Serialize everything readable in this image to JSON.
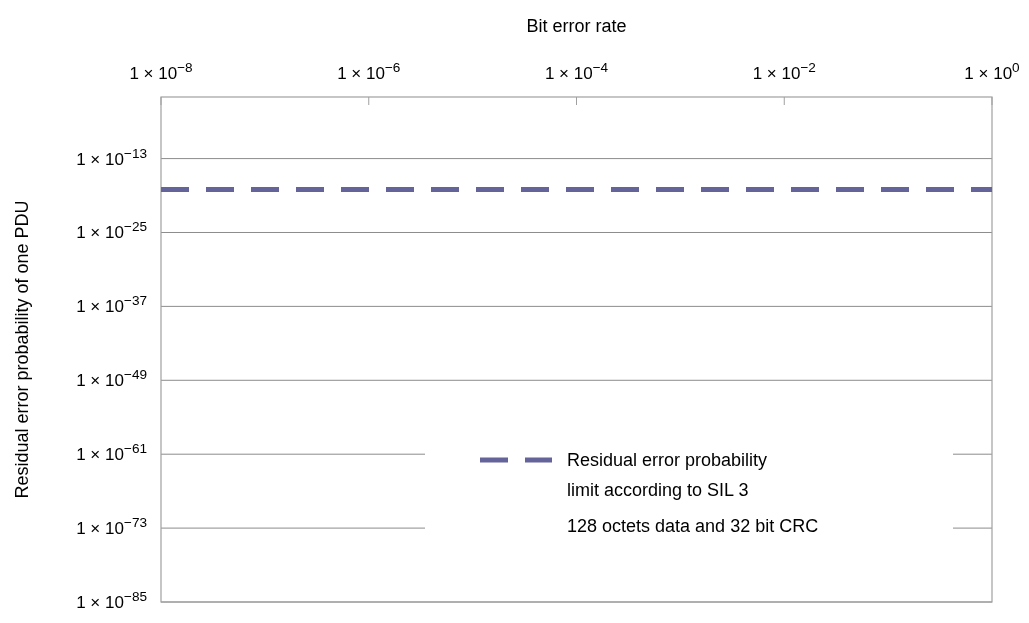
{
  "chart_data": {
    "type": "line",
    "xlabel": "Bit error rate",
    "ylabel": "Residual error probability of one PDU",
    "log": "xy",
    "xlim": [
      1e-08,
      1
    ],
    "ylim": [
      1e-85,
      0.001
    ],
    "xticks": [
      {
        "value": 1e-08,
        "label": "1 × 10$^{−8}$"
      },
      {
        "value": 1e-06,
        "label": "1 × 10$^{−6}$"
      },
      {
        "value": 0.0001,
        "label": "1 × 10$^{−4}$"
      },
      {
        "value": 0.01,
        "label": "1 × 10$^{−2}$"
      },
      {
        "value": 1,
        "label": "1 × 10$^{0}$"
      }
    ],
    "yticks": [
      {
        "value": 1e-13,
        "label": "1 × 10$^{−13}$"
      },
      {
        "value": 1e-25,
        "label": "1 × 10$^{−25}$"
      },
      {
        "value": 1e-37,
        "label": "1 × 10$^{−37}$"
      },
      {
        "value": 1e-49,
        "label": "1 × 10$^{−49}$"
      },
      {
        "value": 1e-61,
        "label": "1 × 10$^{−61}$"
      },
      {
        "value": 1e-73,
        "label": "1 × 10$^{−73}$"
      },
      {
        "value": 1e-85,
        "label": "1 × 10$^{−85}$"
      }
    ],
    "grid": "y",
    "legend": "bottom right",
    "line_style": "dashed",
    "series": [
      {
        "name": "Residual error probability limit according to SIL 3",
        "color": "#64649a",
        "x": [
          1e-08,
          1
        ],
        "values": [
          1e-18,
          1e-18
        ]
      }
    ],
    "annotations": [
      "128 octets data and 32 bit CRC"
    ]
  }
}
